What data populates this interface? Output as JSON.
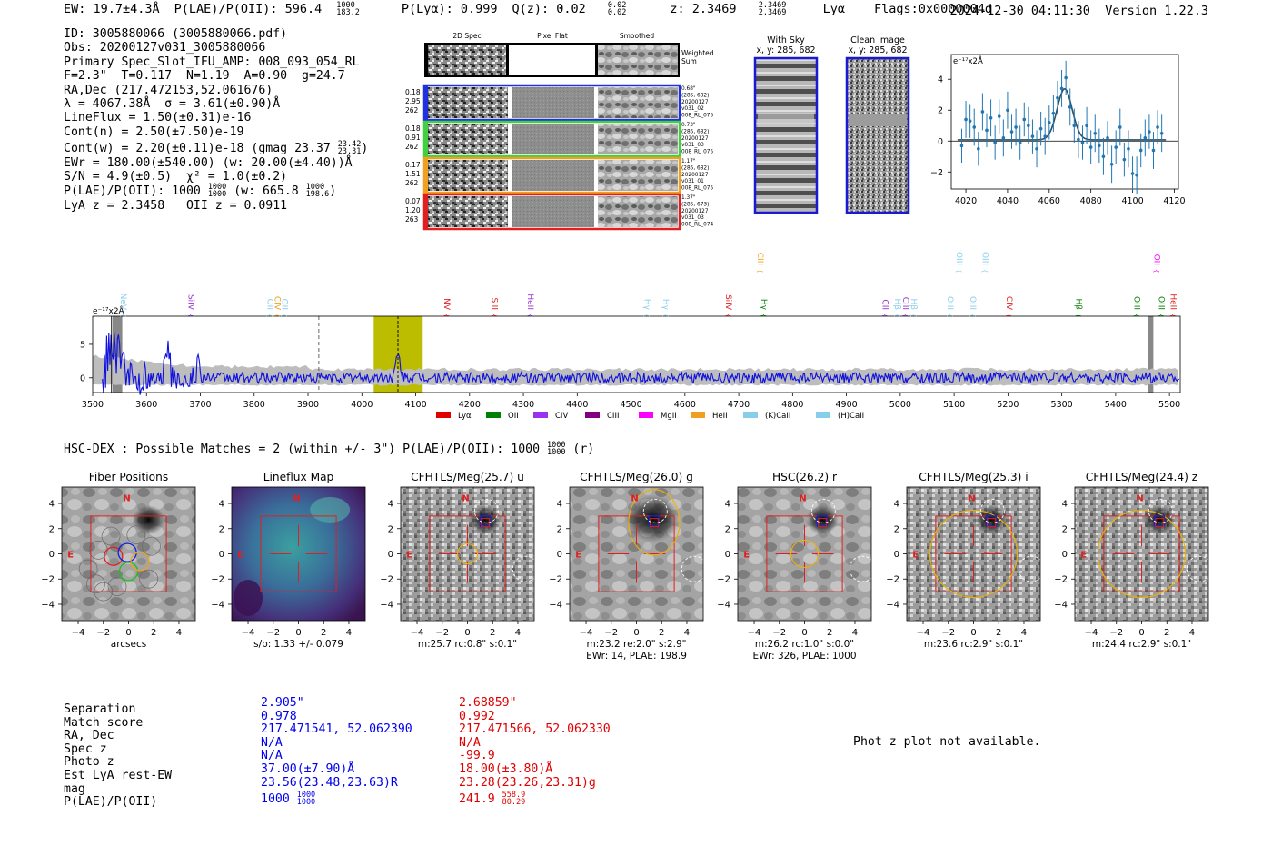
{
  "header": {
    "ew": "EW: 19.7±4.3Å",
    "plae": "P(LAE)/P(OII): 596.4",
    "plae_hi": "1000",
    "plae_lo": "183.2",
    "plya": "P(Lyα): 0.999",
    "qz": "Q(z): 0.02",
    "qz_hi": "0.02",
    "qz_lo": "0.02",
    "z": "z: 2.3469",
    "z_hi": "2.3469",
    "z_lo": "2.3469",
    "line": "Lyα",
    "flags": "Flags:0x0000004d",
    "datetime": "2024-12-30 04:11:30",
    "version": "Version 1.22.3"
  },
  "info": {
    "id": "ID: 3005880066 (3005880066.pdf)",
    "obs": "Obs: 20200127v031_3005880066",
    "slot": "Primary Spec_Slot_IFU_AMP: 008_093_054_RL",
    "params": "F=2.3\"  T=0.117  N=1.19  A=0.90  g=24.7",
    "radec": "RA,Dec (217.472153,52.061676)",
    "lambda": "λ = 4067.38Å  σ = 3.61(±0.90)Å",
    "lineflux": "LineFlux = 1.50(±0.31)e-16",
    "contn": "Cont(n) = 2.50(±7.50)e-19",
    "contw": "Cont(w) = 2.20(±0.11)e-18 (gmag 23.37",
    "contw_hi": "23.42",
    "contw_lo": "23.31",
    "contw_end": ")",
    "ewr": "EWr = 180.00(±540.00) (w: 20.00(±4.40))Å",
    "sn": "S/N = 4.9(±0.5)  χ² = 1.0(±0.2)",
    "plae": "P(LAE)/P(OII): 1000",
    "plae_hi": "1000",
    "plae_lo": "1000",
    "plae_w": " (w: 665.8",
    "plae_w_hi": "1000",
    "plae_w_lo": "198.6",
    "plae_end": ")",
    "z": "LyA z = 2.3458   OII z = 0.0911"
  },
  "cutouts": {
    "col_2d": "2D Spec",
    "col_flat": "Pixel Flat",
    "col_smooth": "Smoothed",
    "weighted": "Weighted",
    "weighted2": "Sum",
    "rows": [
      {
        "v1": "0.18",
        "v2": "2.95",
        "v3": "262",
        "n1": "0.68\"",
        "n2": "(285, 682)",
        "n3": "20200127",
        "n4": "v031_02",
        "n5": "008_RL_075",
        "color": "#2030e0"
      },
      {
        "v1": "0.18",
        "v2": "0.91",
        "v3": "262",
        "n1": "0.73\"",
        "n2": "(285, 682)",
        "n3": "20200127",
        "n4": "v031_03",
        "n5": "008_RL_075",
        "color": "#40d040"
      },
      {
        "v1": "0.17",
        "v2": "1.51",
        "v3": "262",
        "n1": "1.17\"",
        "n2": "(285, 682)",
        "n3": "20200127",
        "n4": "v031_01",
        "n5": "008_RL_075",
        "color": "#f0a020"
      },
      {
        "v1": "0.07",
        "v2": "1.20",
        "v3": "263",
        "n1": "1.37\"",
        "n2": "(285, 673)",
        "n3": "20200127",
        "n4": "v031_03",
        "n5": "008_RL_074",
        "color": "#e02020"
      }
    ],
    "withsky": "With Sky",
    "withsky_xy": "x, y: 285, 682",
    "clean": "Clean Image",
    "clean_xy": "x, y: 285, 682"
  },
  "zoom_chart": {
    "type": "line",
    "ylabel": "e⁻¹⁷x2Å",
    "xlim": [
      4013,
      4122
    ],
    "ylim": [
      -3.1,
      5.6
    ],
    "xticks": [
      "4020",
      "4040",
      "4060",
      "4080",
      "4100",
      "4120"
    ],
    "yticks": [
      "4",
      "2",
      "0",
      "−2"
    ],
    "x": [
      4018,
      4020,
      4022,
      4024,
      4026,
      4028,
      4030,
      4032,
      4034,
      4036,
      4038,
      4040,
      4042,
      4044,
      4046,
      4048,
      4050,
      4052,
      4054,
      4056,
      4058,
      4060,
      4062,
      4064,
      4066,
      4068,
      4070,
      4072,
      4074,
      4076,
      4078,
      4080,
      4082,
      4084,
      4086,
      4088,
      4090,
      4092,
      4094,
      4096,
      4098,
      4100,
      4102,
      4104,
      4106,
      4108,
      4110,
      4112,
      4114
    ],
    "values": [
      -0.3,
      1.4,
      1.3,
      0.9,
      -0.5,
      1.9,
      0.7,
      1.5,
      -0.1,
      1.6,
      0.2,
      2.0,
      0.6,
      0.9,
      -0.1,
      1.4,
      1.0,
      0.3,
      -0.5,
      0.8,
      0.3,
      1.2,
      1.8,
      2.8,
      3.4,
      4.1,
      2.2,
      1.0,
      0.1,
      -0.1,
      1.0,
      -0.4,
      0.5,
      -0.3,
      -1.0,
      0.2,
      -1.5,
      -0.4,
      0.9,
      -1.2,
      -0.5,
      -2.1,
      -2.2,
      -0.6,
      0.2,
      0.6,
      -0.6,
      0.9,
      0.5
    ],
    "errors": [
      1.1,
      1.2,
      1.1,
      1.2,
      1.1,
      1.2,
      1.1,
      1.2,
      1.1,
      1.1,
      1.2,
      1.2,
      1.1,
      1.2,
      1.1,
      1.1,
      1.2,
      1.1,
      1.2,
      1.1,
      1.2,
      1.1,
      1.2,
      1.1,
      1.2,
      1.1,
      1.2,
      1.1,
      1.2,
      1.1,
      1.2,
      1.1,
      1.2,
      1.1,
      1.2,
      1.1,
      1.2,
      1.1,
      1.2,
      1.1,
      1.2,
      1.1,
      1.2,
      1.1,
      1.2,
      1.1,
      1.2,
      1.1,
      1.2
    ],
    "fit_center": 4067.4,
    "fit_sigma": 3.6,
    "fit_amp": 3.3,
    "fit_cont": 0.08
  },
  "chart_data": {
    "type": "line",
    "ylabel": "e⁻¹⁷x2Å",
    "xlim": [
      3500,
      5520
    ],
    "ylim": [
      -2.2,
      9.2
    ],
    "xticks": [
      "3500",
      "3600",
      "3700",
      "3800",
      "3900",
      "4000",
      "4100",
      "4200",
      "4300",
      "4400",
      "4500",
      "4600",
      "4700",
      "4800",
      "4900",
      "5000",
      "5100",
      "5200",
      "5300",
      "5400",
      "5500"
    ],
    "yticks": [
      "5",
      "0"
    ],
    "highlight_range": [
      4022,
      4113
    ],
    "line_marker": 4067,
    "dashed_marker": 3920,
    "masked_ranges": [
      [
        3537,
        3555
      ],
      [
        5460,
        5470
      ]
    ],
    "series_seed": 4067,
    "lines": [
      {
        "name": "NeV",
        "wavelength": 3547,
        "color": "#87ceeb",
        "row": "lower"
      },
      {
        "name": "SiIV",
        "wavelength": 3673,
        "color": "#9932cc",
        "row": "lower"
      },
      {
        "name": "OII",
        "wavelength": 3820,
        "color": "#87ceeb",
        "row": "lower"
      },
      {
        "name": "CIV",
        "wavelength": 3833,
        "color": "#f0a020",
        "row": "lower"
      },
      {
        "name": "OII",
        "wavelength": 3847,
        "color": "#87ceeb",
        "row": "lower"
      },
      {
        "name": "NV",
        "wavelength": 4148,
        "color": "#e02020",
        "row": "lower"
      },
      {
        "name": "SiII",
        "wavelength": 4237,
        "color": "#e02020",
        "row": "lower"
      },
      {
        "name": "HeII",
        "wavelength": 4303,
        "color": "#9932cc",
        "row": "lower"
      },
      {
        "name": "Hγ",
        "wavelength": 4520,
        "color": "#87ceeb",
        "row": "lower"
      },
      {
        "name": "Hγ",
        "wavelength": 4555,
        "color": "#87ceeb",
        "row": "lower"
      },
      {
        "name": "SiIV",
        "wavelength": 4671,
        "color": "#e02020",
        "row": "lower"
      },
      {
        "name": "CIII",
        "wavelength": 4730,
        "color": "#f0a020",
        "row": "upper"
      },
      {
        "name": "Hγ",
        "wavelength": 4737,
        "color": "#008000",
        "row": "lower"
      },
      {
        "name": "CII",
        "wavelength": 4962,
        "color": "#9932cc",
        "row": "lower"
      },
      {
        "name": "Hβ",
        "wavelength": 4985,
        "color": "#87ceeb",
        "row": "lower"
      },
      {
        "name": "CIII",
        "wavelength": 5000,
        "color": "#9932cc",
        "row": "lower"
      },
      {
        "name": "Hβ",
        "wavelength": 5015,
        "color": "#87ceeb",
        "row": "lower"
      },
      {
        "name": "OIII",
        "wavelength": 5083,
        "color": "#87ceeb",
        "row": "lower"
      },
      {
        "name": "OIII",
        "wavelength": 5100,
        "color": "#87ceeb",
        "row": "upper"
      },
      {
        "name": "OIII",
        "wavelength": 5125,
        "color": "#87ceeb",
        "row": "lower"
      },
      {
        "name": "OIII",
        "wavelength": 5148,
        "color": "#87ceeb",
        "row": "upper"
      },
      {
        "name": "CIV",
        "wavelength": 5193,
        "color": "#e02020",
        "row": "lower"
      },
      {
        "name": "Hβ",
        "wavelength": 5322,
        "color": "#008000",
        "row": "lower"
      },
      {
        "name": "OIII",
        "wavelength": 5430,
        "color": "#008000",
        "row": "lower"
      },
      {
        "name": "OII",
        "wavelength": 5467,
        "color": "#ff00ff",
        "row": "upper"
      },
      {
        "name": "OIII",
        "wavelength": 5475,
        "color": "#008000",
        "row": "lower"
      },
      {
        "name": "HeII",
        "wavelength": 5497,
        "color": "#e02020",
        "row": "lower"
      }
    ],
    "legend": [
      {
        "label": "Lyα",
        "color": "#e00000"
      },
      {
        "label": "OII",
        "color": "#008000"
      },
      {
        "label": "CIV",
        "color": "#9932f0"
      },
      {
        "label": "CIII",
        "color": "#800080"
      },
      {
        "label": "MgII",
        "color": "#ff00ff"
      },
      {
        "label": "HeII",
        "color": "#f0a020"
      },
      {
        "label": "(K)CaII",
        "color": "#87ceeb"
      },
      {
        "label": "(H)CaII",
        "color": "#87ceeb"
      }
    ]
  },
  "hsc": {
    "line": "HSC-DEX : Possible Matches = 2 (within +/- 3\")  P(LAE)/P(OII): 1000",
    "line_hi": "1000",
    "line_lo": "1000",
    "line_end": "(r)"
  },
  "stamps": [
    {
      "title": "Fiber Positions",
      "caption1": "arcsecs",
      "caption2": "",
      "kind": "fiber"
    },
    {
      "title": "Lineflux Map",
      "caption1": "s/b: 1.33 +/- 0.079",
      "caption2": "",
      "kind": "flux"
    },
    {
      "title": "CFHTLS/Meg(25.7) u",
      "caption1": "m:25.7 rc:0.8\"  s:0.1\"",
      "caption2": "",
      "kind": "u"
    },
    {
      "title": "CFHTLS/Meg(26.0) g",
      "caption1": "m:23.2  re:2.0\"  s:2.9\"",
      "caption2": "EWr: 14, PLAE: 198.9",
      "kind": "g"
    },
    {
      "title": "HSC(26.2) r",
      "caption1": "m:26.2 rc:1.0\"  s:0.0\"",
      "caption2": "EWr: 326, PLAE: 1000",
      "kind": "r"
    },
    {
      "title": "CFHTLS/Meg(25.3) i",
      "caption1": "m:23.6 rc:2.9\"  s:0.1\"",
      "caption2": "",
      "kind": "i"
    },
    {
      "title": "CFHTLS/Meg(24.4) z",
      "caption1": "m:24.4 rc:2.9\"  s:0.1\"",
      "caption2": "",
      "kind": "z"
    }
  ],
  "stamp_axis": {
    "ticks": [
      "−4",
      "−2",
      "0",
      "2",
      "4"
    ],
    "compass_n": "N",
    "compass_e": "E"
  },
  "matches": {
    "labels": [
      "Separation",
      "Match score",
      "RA, Dec",
      "Spec z",
      "Photo z",
      "Est LyA rest-EW",
      "mag",
      "P(LAE)/P(OII)"
    ],
    "col1": [
      "2.905\"",
      "0.978",
      "217.471541, 52.062390",
      "N/A",
      "N/A",
      "37.00(±7.90)Å",
      "23.56(23.48,23.63)R"
    ],
    "col1_plae": "1000",
    "col1_plae_hi": "1000",
    "col1_plae_lo": "1000",
    "col2": [
      "2.68859\"",
      "0.992",
      "217.471566, 52.062330",
      "N/A",
      "-99.9",
      "18.00(±3.80)Å",
      "23.28(23.26,23.31)g"
    ],
    "col2_plae": "241.9",
    "col2_plae_hi": "558.9",
    "col2_plae_lo": "80.29"
  },
  "photz_note": "Phot z plot not available."
}
